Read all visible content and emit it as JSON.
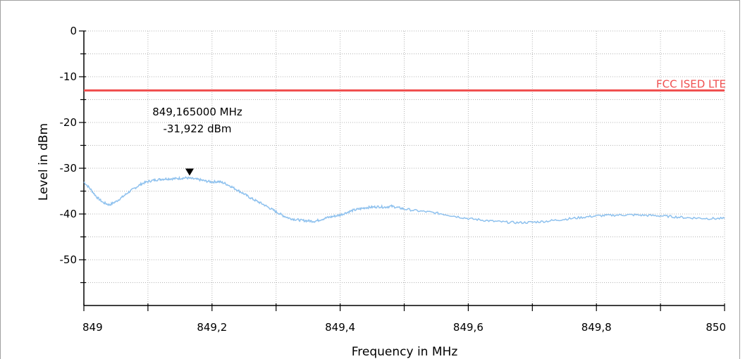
{
  "chart_data": {
    "type": "line",
    "xlabel": "Frequency in MHz",
    "ylabel": "Level in dBm",
    "xlim": [
      849,
      850
    ],
    "ylim": [
      -60,
      0
    ],
    "x_ticks": [
      849,
      849.2,
      849.4,
      849.6,
      849.8,
      850
    ],
    "x_tick_labels": [
      "849",
      "849,2",
      "849,4",
      "849,6",
      "849,8",
      "850"
    ],
    "y_ticks": [
      0,
      -10,
      -20,
      -30,
      -40,
      -50
    ],
    "y_tick_labels": [
      "0",
      "-10",
      "-20",
      "-30",
      "-40",
      "-50"
    ],
    "grid": true,
    "limit_line": {
      "name": "FCC ISED LTE",
      "value": -13,
      "color": "#f05050"
    },
    "marker": {
      "x": 849.165,
      "y": -31.922,
      "label_freq": "849,165000 MHz",
      "label_level": "-31,922 dBm"
    },
    "series": [
      {
        "color": "#8ec1ee",
        "x": [
          849.0,
          849.01,
          849.02,
          849.03,
          849.04,
          849.05,
          849.06,
          849.07,
          849.08,
          849.09,
          849.1,
          849.11,
          849.12,
          849.13,
          849.14,
          849.15,
          849.16,
          849.17,
          849.18,
          849.19,
          849.2,
          849.21,
          849.22,
          849.23,
          849.24,
          849.25,
          849.26,
          849.27,
          849.28,
          849.29,
          849.3,
          849.31,
          849.32,
          849.33,
          849.34,
          849.35,
          849.36,
          849.37,
          849.38,
          849.39,
          849.4,
          849.41,
          849.42,
          849.43,
          849.44,
          849.45,
          849.46,
          849.47,
          849.48,
          849.49,
          849.5,
          849.52,
          849.54,
          849.56,
          849.58,
          849.6,
          849.62,
          849.64,
          849.66,
          849.68,
          849.7,
          849.72,
          849.74,
          849.76,
          849.78,
          849.8,
          849.82,
          849.84,
          849.86,
          849.88,
          849.9,
          849.92,
          849.94,
          849.96,
          849.98,
          850.0
        ],
        "values": [
          -33.0,
          -34.5,
          -36.3,
          -37.5,
          -38.0,
          -37.3,
          -36.3,
          -35.2,
          -34.3,
          -33.4,
          -32.9,
          -32.6,
          -32.4,
          -32.3,
          -32.3,
          -32.2,
          -32.1,
          -32.3,
          -32.5,
          -32.8,
          -33.0,
          -32.9,
          -33.3,
          -34.0,
          -34.8,
          -35.6,
          -36.5,
          -37.2,
          -37.9,
          -38.7,
          -39.5,
          -40.3,
          -40.9,
          -41.2,
          -41.4,
          -41.5,
          -41.6,
          -41.2,
          -40.8,
          -40.5,
          -40.2,
          -39.7,
          -39.2,
          -38.9,
          -38.6,
          -38.5,
          -38.4,
          -38.5,
          -38.3,
          -38.6,
          -38.9,
          -39.3,
          -39.6,
          -40.0,
          -40.5,
          -41.0,
          -41.3,
          -41.6,
          -41.8,
          -41.9,
          -41.8,
          -41.6,
          -41.3,
          -41.0,
          -40.7,
          -40.4,
          -40.3,
          -40.2,
          -40.2,
          -40.3,
          -40.4,
          -40.6,
          -40.8,
          -40.9,
          -41.0,
          -41.0
        ]
      }
    ]
  }
}
